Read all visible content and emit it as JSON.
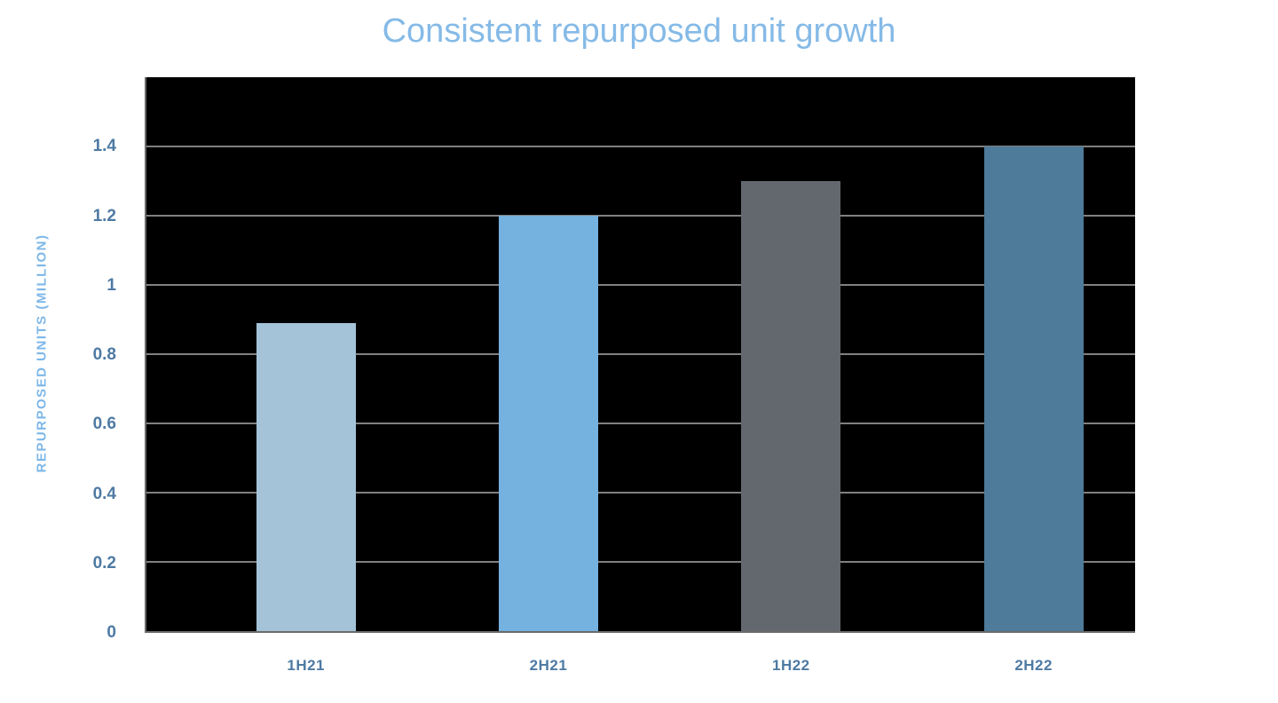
{
  "header": {
    "title": "Consistent repurposed unit growth"
  },
  "chart_data": {
    "type": "bar",
    "title": "Consistent repurposed unit growth",
    "xlabel": "",
    "ylabel": "REPURPOSED UNITS (MILLION)",
    "categories": [
      "1H21",
      "2H21",
      "1H22",
      "2H22"
    ],
    "values": [
      0.89,
      1.2,
      1.3,
      1.4
    ],
    "bar_colors": [
      "#a4c3d8",
      "#75b2e0",
      "#63686f",
      "#4d7b99"
    ],
    "ylim": [
      0,
      1.6
    ],
    "yticks": [
      0,
      0.2,
      0.4,
      0.6,
      0.8,
      1,
      1.2,
      1.4
    ],
    "ytick_labels": [
      "0",
      "0.2",
      "0.4",
      "0.6",
      "0.8",
      "1",
      "1.2",
      "1.4"
    ],
    "grid": true,
    "legend_position": "none",
    "colors": {
      "title": "#85bae7",
      "axis_label": "#7db7e8",
      "tick_labels": "#4e7aa3",
      "plot_background": "#000000",
      "gridline": "#808080",
      "axis_line": "#6b6b6b",
      "page_background": "#ffffff"
    }
  }
}
